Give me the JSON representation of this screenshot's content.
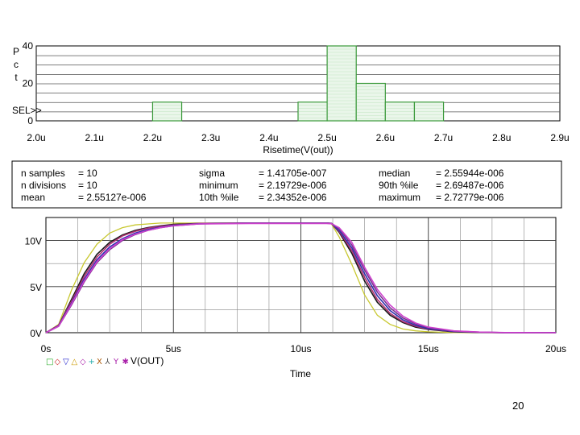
{
  "chart_data": [
    {
      "type": "bar",
      "ylabel": "Pct",
      "xlabel": "Risetime(V(out))",
      "x_ticks": [
        "2.0u",
        "2.1u",
        "2.2u",
        "2.3u",
        "2.4u",
        "2.5u",
        "2.6u",
        "2.7u",
        "2.8u",
        "2.9u"
      ],
      "y_ticks": [
        "40",
        "20",
        "0"
      ],
      "sel_label": "SEL>>",
      "xlim": [
        2.0,
        2.9
      ],
      "ylim": [
        0,
        40
      ],
      "bars": [
        {
          "x0": 2.2,
          "x1": 2.25,
          "pct": 10
        },
        {
          "x0": 2.45,
          "x1": 2.5,
          "pct": 10
        },
        {
          "x0": 2.5,
          "x1": 2.55,
          "pct": 40
        },
        {
          "x0": 2.55,
          "x1": 2.6,
          "pct": 20
        },
        {
          "x0": 2.6,
          "x1": 2.65,
          "pct": 10
        },
        {
          "x0": 2.65,
          "x1": 2.7,
          "pct": 10
        }
      ],
      "bar_color": "#3a9a3a"
    },
    {
      "type": "table",
      "rows": [
        [
          {
            "label": "n samples",
            "value": "10"
          },
          {
            "label": "sigma",
            "value": "1.41705e-007"
          },
          {
            "label": "median",
            "value": "2.55944e-006"
          }
        ],
        [
          {
            "label": "n divisions",
            "value": "10"
          },
          {
            "label": "minimum",
            "value": "2.19729e-006"
          },
          {
            "label": "90th %ile",
            "value": "2.69487e-006"
          }
        ],
        [
          {
            "label": "mean",
            "value": "2.55127e-006"
          },
          {
            "label": "10th %ile",
            "value": "2.34352e-006"
          },
          {
            "label": "maximum",
            "value": "2.72779e-006"
          }
        ]
      ]
    },
    {
      "type": "line",
      "xlabel": "Time",
      "x_ticks": [
        "0s",
        "5us",
        "10us",
        "15us",
        "20us"
      ],
      "y_ticks": [
        "10V",
        "5V",
        "0V"
      ],
      "xlim": [
        0,
        20
      ],
      "ylim": [
        0,
        12.5
      ],
      "legend_symbols": [
        "□",
        "◇",
        "▽",
        "△",
        "◇",
        "+",
        "X",
        "⅄",
        "Y",
        "✱"
      ],
      "legend_symbol_colors": [
        "#22aa22",
        "#cc2222",
        "#2222cc",
        "#cc9900",
        "#aa22aa",
        "#22aaaa",
        "#aa5500",
        "#555555",
        "#aa22aa",
        "#aa22aa"
      ],
      "legend_label": "V(OUT)",
      "series_colors": [
        "#c8c830",
        "#1a1a1a",
        "#b03070",
        "#3030b0",
        "#7a3090",
        "#cc40cc"
      ],
      "series": [
        {
          "x": [
            0,
            0.5,
            1,
            1.5,
            2,
            2.5,
            3,
            3.5,
            4,
            4.5,
            5,
            6,
            8,
            10,
            11,
            11.2,
            11.5,
            12,
            12.5,
            13,
            13.5,
            14,
            14.5,
            15,
            16,
            17,
            18,
            20
          ],
          "y": [
            0,
            0.9,
            4.6,
            7.6,
            9.6,
            10.8,
            11.4,
            11.7,
            11.8,
            11.9,
            11.9,
            11.9,
            11.9,
            11.9,
            11.9,
            11.8,
            10.4,
            7.4,
            4.1,
            1.9,
            0.9,
            0.4,
            0.2,
            0.1,
            0.02,
            0,
            0,
            0
          ]
        },
        {
          "x": [
            0,
            0.5,
            1,
            1.5,
            2,
            2.5,
            3,
            3.5,
            4,
            4.5,
            5,
            6,
            8,
            10,
            11,
            11.2,
            11.5,
            12,
            12.5,
            13,
            13.5,
            14,
            14.5,
            15,
            16,
            17,
            18,
            20
          ],
          "y": [
            0,
            0.8,
            3.6,
            6.4,
            8.5,
            9.8,
            10.6,
            11.1,
            11.4,
            11.6,
            11.75,
            11.85,
            11.9,
            11.9,
            11.9,
            11.85,
            10.9,
            8.6,
            5.6,
            3.3,
            1.9,
            1.1,
            0.6,
            0.35,
            0.1,
            0.03,
            0,
            0
          ]
        },
        {
          "x": [
            0,
            0.5,
            1,
            1.5,
            2,
            2.5,
            3,
            3.5,
            4,
            4.5,
            5,
            6,
            8,
            10,
            11,
            11.2,
            11.5,
            12,
            12.5,
            13,
            13.5,
            14,
            14.5,
            15,
            16,
            17,
            18,
            20
          ],
          "y": [
            0,
            0.8,
            3.4,
            6.1,
            8.2,
            9.6,
            10.5,
            11.0,
            11.35,
            11.55,
            11.7,
            11.85,
            11.9,
            11.9,
            11.9,
            11.85,
            11.0,
            8.9,
            6.0,
            3.6,
            2.1,
            1.2,
            0.7,
            0.4,
            0.12,
            0.04,
            0,
            0
          ]
        },
        {
          "x": [
            0,
            0.5,
            1,
            1.5,
            2,
            2.5,
            3,
            3.5,
            4,
            4.5,
            5,
            6,
            8,
            10,
            11,
            11.2,
            11.5,
            12,
            12.5,
            13,
            13.5,
            14,
            14.5,
            15,
            16,
            17,
            18,
            20
          ],
          "y": [
            0,
            0.75,
            3.2,
            5.8,
            7.9,
            9.3,
            10.2,
            10.8,
            11.2,
            11.45,
            11.65,
            11.82,
            11.9,
            11.9,
            11.9,
            11.85,
            11.1,
            9.2,
            6.4,
            4.0,
            2.4,
            1.4,
            0.8,
            0.45,
            0.14,
            0.05,
            0.01,
            0
          ]
        },
        {
          "x": [
            0,
            0.5,
            1,
            1.5,
            2,
            2.5,
            3,
            3.5,
            4,
            4.5,
            5,
            6,
            8,
            10,
            11,
            11.2,
            11.5,
            12,
            12.5,
            13,
            13.5,
            14,
            14.5,
            15,
            16,
            17,
            18,
            20
          ],
          "y": [
            0,
            0.7,
            3.0,
            5.5,
            7.6,
            9.0,
            10.0,
            10.65,
            11.1,
            11.4,
            11.6,
            11.8,
            11.9,
            11.9,
            11.9,
            11.87,
            11.3,
            9.5,
            6.8,
            4.4,
            2.7,
            1.6,
            0.95,
            0.55,
            0.18,
            0.06,
            0.01,
            0
          ]
        },
        {
          "x": [
            0,
            0.5,
            1,
            1.5,
            2,
            2.5,
            3,
            3.5,
            4,
            4.5,
            5,
            6,
            8,
            10,
            11,
            11.2,
            11.5,
            12,
            12.5,
            13,
            13.5,
            14,
            14.5,
            15,
            16,
            17,
            18,
            20
          ],
          "y": [
            0,
            0.7,
            3.1,
            5.6,
            7.7,
            9.1,
            10.1,
            10.7,
            11.1,
            11.4,
            11.6,
            11.8,
            11.85,
            11.85,
            11.85,
            11.82,
            11.4,
            9.8,
            7.1,
            4.7,
            3.0,
            1.8,
            1.05,
            0.6,
            0.2,
            0.07,
            0.02,
            0
          ]
        }
      ]
    }
  ],
  "page_number": "20"
}
